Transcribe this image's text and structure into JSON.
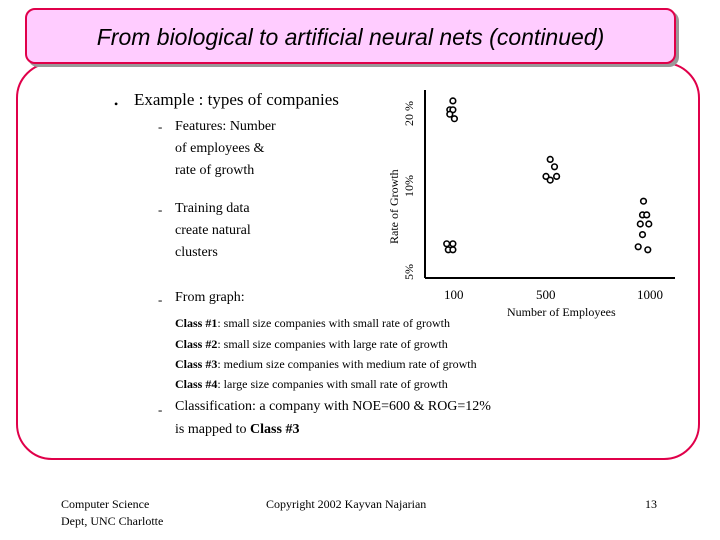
{
  "title": "From biological to artificial neural nets (continued)",
  "example": {
    "bullet": "•",
    "heading": "Example : types of companies"
  },
  "features": [
    "Features: Number",
    "of employees &",
    "rate of growth"
  ],
  "training": [
    "Training data",
    "create natural",
    "clusters"
  ],
  "from_graph": "From graph:",
  "dash": "-",
  "classes": [
    {
      "label": "Class #1",
      "text": ": small size companies with small rate of growth"
    },
    {
      "label": "Class #2",
      "text": ": small size companies with large rate of growth"
    },
    {
      "label": "Class #3",
      "text": ": medium size companies with medium rate of growth"
    },
    {
      "label": "Class #4",
      "text": ": large size companies with small rate of growth"
    }
  ],
  "classification": {
    "line1": "Classification: a company with NOE=600 & ROG=12%",
    "line2_prefix": "is mapped to ",
    "line2_bold": "Class #3"
  },
  "chart_data": {
    "type": "scatter",
    "xlabel": "Number of Employees",
    "ylabel": "Rate of Growth",
    "x_ticks": [
      "100",
      "500",
      "1000"
    ],
    "y_ticks": [
      "5%",
      "10%",
      "20 %"
    ],
    "series": [
      {
        "points": [
          [
            90,
            21.5
          ],
          [
            80,
            20.3
          ],
          [
            90,
            20.3
          ],
          [
            80,
            19.7
          ],
          [
            95,
            19.1
          ]
        ]
      },
      {
        "points": [
          [
            70,
            6.2
          ],
          [
            90,
            6.2
          ],
          [
            75,
            5.8
          ],
          [
            90,
            5.8
          ]
        ]
      },
      {
        "points": [
          [
            520,
            13.6
          ],
          [
            540,
            12.6
          ],
          [
            500,
            11.3
          ],
          [
            550,
            11.3
          ],
          [
            520,
            10.8
          ]
        ]
      },
      {
        "points": [
          [
            960,
            9.0
          ],
          [
            955,
            8.1
          ],
          [
            975,
            8.1
          ],
          [
            945,
            7.5
          ],
          [
            985,
            7.5
          ],
          [
            955,
            6.8
          ],
          [
            935,
            6.0
          ],
          [
            980,
            5.8
          ]
        ]
      }
    ]
  },
  "footer": {
    "left_line1": "Computer Science",
    "left_line2": "Dept, UNC Charlotte",
    "center": "Copyright 2002 Kayvan Najarian",
    "page": "13"
  }
}
